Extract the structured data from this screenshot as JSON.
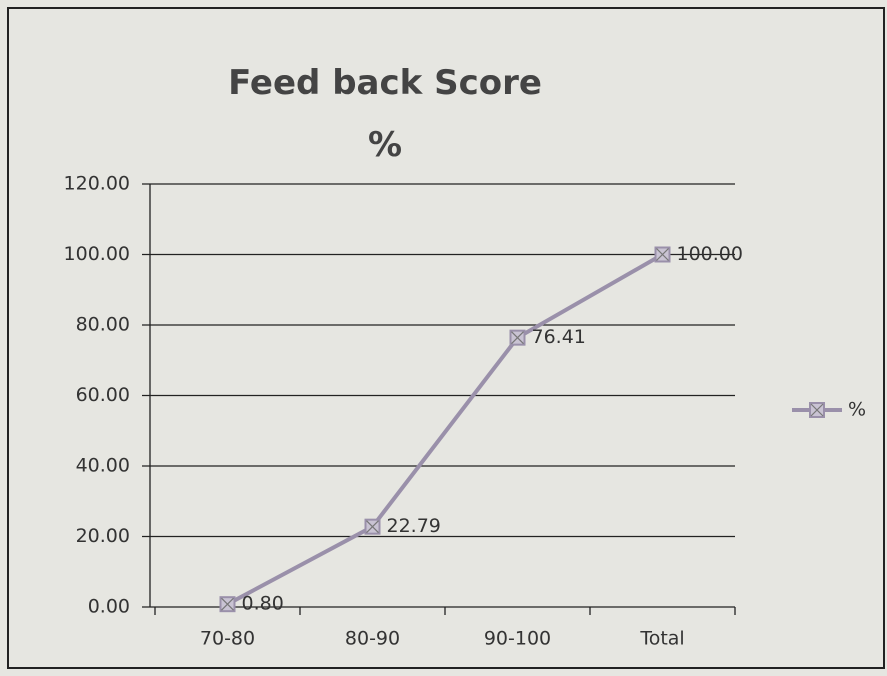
{
  "chart_data": {
    "type": "line",
    "title": "Feed back Score %",
    "categories": [
      "70-80",
      "80-90",
      "90-100",
      "Total"
    ],
    "series": [
      {
        "name": "%",
        "color": "#9a90aa",
        "values": [
          0.8,
          22.79,
          76.41,
          100
        ],
        "value_labels": [
          "0.80",
          "22.79",
          "76.41",
          "100.00"
        ]
      }
    ],
    "ylim": [
      0,
      120
    ],
    "yticks": [
      {
        "value": 0,
        "label": "0.00"
      },
      {
        "value": 20,
        "label": "20.00"
      },
      {
        "value": 40,
        "label": "40.00"
      },
      {
        "value": 60,
        "label": "60.00"
      },
      {
        "value": 80,
        "label": "80.00"
      },
      {
        "value": 100,
        "label": "100.00"
      },
      {
        "value": 120,
        "label": "120.00"
      }
    ],
    "grid": true,
    "legend": "right"
  }
}
